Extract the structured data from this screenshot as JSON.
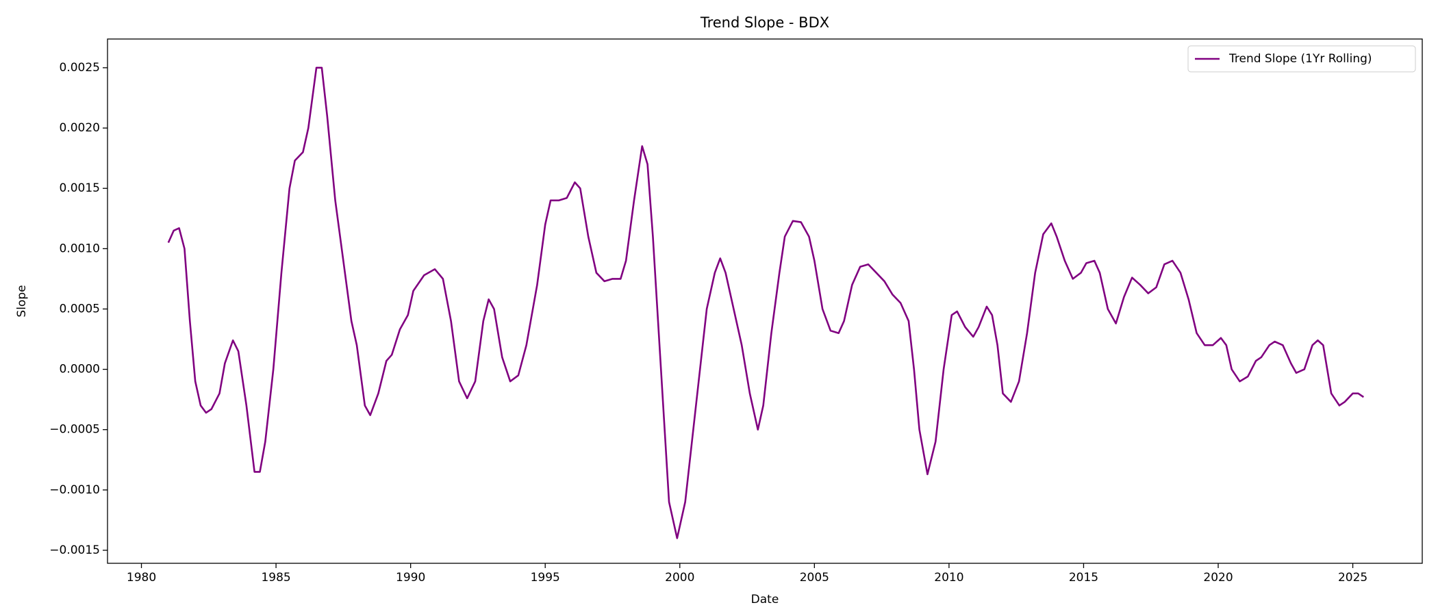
{
  "chart_data": {
    "type": "line",
    "title": "Trend Slope - BDX",
    "x_label": "Date",
    "y_label": "Slope",
    "xlim": [
      1978.74,
      2027.58
    ],
    "ylim": [
      -0.001608,
      0.002738
    ],
    "xticks": [
      1980,
      1985,
      1990,
      1995,
      2000,
      2005,
      2010,
      2015,
      2020,
      2025
    ],
    "yticks": [
      {
        "value": -0.0015,
        "label": "−0.0015"
      },
      {
        "value": -0.001,
        "label": "−0.0010"
      },
      {
        "value": -0.0005,
        "label": "−0.0005"
      },
      {
        "value": 0,
        "label": "0.0000"
      },
      {
        "value": 0.0005,
        "label": "0.0005"
      },
      {
        "value": 0.001,
        "label": "0.0010"
      },
      {
        "value": 0.0015,
        "label": "0.0015"
      },
      {
        "value": 0.002,
        "label": "0.0020"
      },
      {
        "value": 0.0025,
        "label": "0.0025"
      }
    ],
    "grid": false,
    "legend": "upper right",
    "x": [
      1981.0,
      1981.2,
      1981.4,
      1981.6,
      1981.8,
      1982.0,
      1982.2,
      1982.4,
      1982.6,
      1982.9,
      1983.1,
      1983.4,
      1983.6,
      1983.9,
      1984.2,
      1984.4,
      1984.6,
      1984.9,
      1985.2,
      1985.5,
      1985.7,
      1986.0,
      1986.2,
      1986.5,
      1986.7,
      1986.9,
      1987.2,
      1987.5,
      1987.8,
      1988.0,
      1988.3,
      1988.5,
      1988.8,
      1989.1,
      1989.3,
      1989.6,
      1989.9,
      1990.1,
      1990.5,
      1990.9,
      1991.2,
      1991.5,
      1991.8,
      1992.1,
      1992.4,
      1992.7,
      1992.9,
      1993.1,
      1993.4,
      1993.7,
      1994.0,
      1994.3,
      1994.7,
      1995.0,
      1995.2,
      1995.5,
      1995.8,
      1996.1,
      1996.3,
      1996.6,
      1996.9,
      1997.2,
      1997.5,
      1997.8,
      1998.0,
      1998.3,
      1998.6,
      1998.8,
      1999.0,
      1999.3,
      1999.6,
      1999.9,
      2000.2,
      2000.5,
      2000.8,
      2001.0,
      2001.3,
      2001.5,
      2001.7,
      2002.0,
      2002.3,
      2002.6,
      2002.9,
      2003.1,
      2003.4,
      2003.7,
      2003.9,
      2004.2,
      2004.5,
      2004.8,
      2005.0,
      2005.3,
      2005.6,
      2005.9,
      2006.1,
      2006.4,
      2006.7,
      2007.0,
      2007.3,
      2007.6,
      2007.9,
      2008.2,
      2008.5,
      2008.7,
      2008.9,
      2009.2,
      2009.5,
      2009.8,
      2010.1,
      2010.3,
      2010.6,
      2010.9,
      2011.1,
      2011.4,
      2011.6,
      2011.8,
      2012.0,
      2012.3,
      2012.6,
      2012.9,
      2013.2,
      2013.5,
      2013.8,
      2014.0,
      2014.3,
      2014.6,
      2014.9,
      2015.1,
      2015.4,
      2015.6,
      2015.9,
      2016.2,
      2016.5,
      2016.8,
      2017.1,
      2017.4,
      2017.7,
      2018.0,
      2018.3,
      2018.6,
      2018.9,
      2019.2,
      2019.5,
      2019.8,
      2020.1,
      2020.3,
      2020.5,
      2020.8,
      2021.1,
      2021.4,
      2021.6,
      2021.9,
      2022.1,
      2022.4,
      2022.7,
      2022.9,
      2023.2,
      2023.5,
      2023.7,
      2023.9,
      2024.2,
      2024.5,
      2024.7,
      2025.0,
      2025.2,
      2025.4
    ],
    "series": [
      {
        "name": "Trend Slope (1Yr Rolling)",
        "color": "#800080",
        "values": [
          0.00105,
          0.00115,
          0.00117,
          0.001,
          0.0004,
          -0.0001,
          -0.0003,
          -0.00036,
          -0.00033,
          -0.0002,
          5e-05,
          0.00024,
          0.00015,
          -0.0003,
          -0.00085,
          -0.00085,
          -0.0006,
          0.0,
          0.0008,
          0.0015,
          0.00173,
          0.0018,
          0.002,
          0.0025,
          0.0025,
          0.0021,
          0.0014,
          0.0009,
          0.0004,
          0.0002,
          -0.0003,
          -0.00038,
          -0.0002,
          7e-05,
          0.00012,
          0.00033,
          0.00045,
          0.00065,
          0.00078,
          0.00083,
          0.00075,
          0.0004,
          -0.0001,
          -0.00024,
          -0.0001,
          0.0004,
          0.00058,
          0.0005,
          0.0001,
          -0.0001,
          -5e-05,
          0.0002,
          0.0007,
          0.0012,
          0.0014,
          0.0014,
          0.00142,
          0.00155,
          0.0015,
          0.0011,
          0.0008,
          0.00073,
          0.00075,
          0.00075,
          0.0009,
          0.0014,
          0.00185,
          0.0017,
          0.0011,
          0.0,
          -0.0011,
          -0.0014,
          -0.0011,
          -0.0005,
          0.0001,
          0.0005,
          0.0008,
          0.00092,
          0.0008,
          0.0005,
          0.0002,
          -0.0002,
          -0.0005,
          -0.0003,
          0.0003,
          0.0008,
          0.0011,
          0.00123,
          0.00122,
          0.0011,
          0.0009,
          0.0005,
          0.00032,
          0.0003,
          0.0004,
          0.0007,
          0.00085,
          0.00087,
          0.0008,
          0.00073,
          0.00062,
          0.00055,
          0.0004,
          0.0,
          -0.0005,
          -0.00087,
          -0.0006,
          0.0,
          0.00045,
          0.00048,
          0.00035,
          0.00027,
          0.00035,
          0.00052,
          0.00045,
          0.0002,
          -0.0002,
          -0.00027,
          -0.0001,
          0.0003,
          0.0008,
          0.00112,
          0.00121,
          0.0011,
          0.0009,
          0.00075,
          0.0008,
          0.00088,
          0.0009,
          0.0008,
          0.0005,
          0.00038,
          0.0006,
          0.00076,
          0.0007,
          0.00063,
          0.00068,
          0.00087,
          0.0009,
          0.0008,
          0.00058,
          0.0003,
          0.0002,
          0.0002,
          0.00026,
          0.0002,
          0.0,
          -0.0001,
          -6e-05,
          7e-05,
          0.0001,
          0.0002,
          0.00023,
          0.0002,
          5e-05,
          -3e-05,
          0.0,
          0.0002,
          0.00024,
          0.0002,
          -0.0002,
          -0.0003,
          -0.00027,
          -0.0002,
          -0.0002,
          -0.00023
        ]
      }
    ]
  }
}
